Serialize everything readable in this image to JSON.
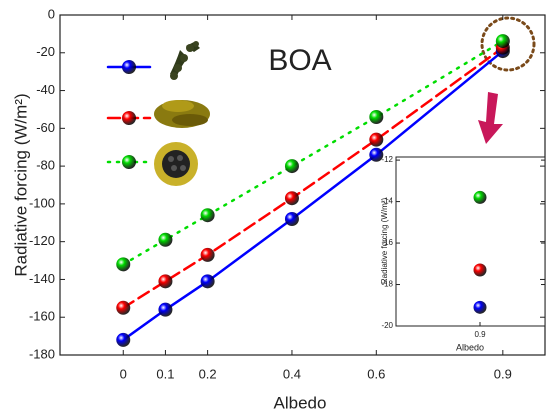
{
  "chart_data": {
    "type": "line",
    "annotation": "BOA",
    "xlabel": "Albedo",
    "ylabel": "Radiative forcing (W/m²)",
    "x": [
      0,
      0.1,
      0.2,
      0.4,
      0.6,
      0.9
    ],
    "xlim": [
      -0.15,
      1.0
    ],
    "xticks": [
      0,
      0.1,
      0.2,
      0.4,
      0.6,
      0.9
    ],
    "ylim": [
      -180,
      0
    ],
    "yticks": [
      0,
      -20,
      -40,
      -60,
      -80,
      -100,
      -120,
      -140,
      -160,
      -180
    ],
    "series": [
      {
        "color": "#0000ff",
        "dash": "solid",
        "values": [
          -172,
          -156,
          -141,
          -108,
          -74,
          -19.1
        ]
      },
      {
        "color": "#ff0000",
        "dash": "dashed",
        "values": [
          -155,
          -141,
          -127,
          -97,
          -66,
          -17.3
        ]
      },
      {
        "color": "#00dd00",
        "dash": "dotted",
        "values": [
          -132,
          -119,
          -106,
          -80,
          -54,
          -13.8
        ]
      }
    ],
    "inset": {
      "xlabel": "Albedo",
      "ylabel": "Radiative forcing (W/m²)",
      "categories": [
        0.9
      ],
      "ylim": [
        -20,
        -11.85
      ],
      "yticks": [
        -12,
        -14,
        -16,
        -18,
        -20
      ]
    }
  }
}
